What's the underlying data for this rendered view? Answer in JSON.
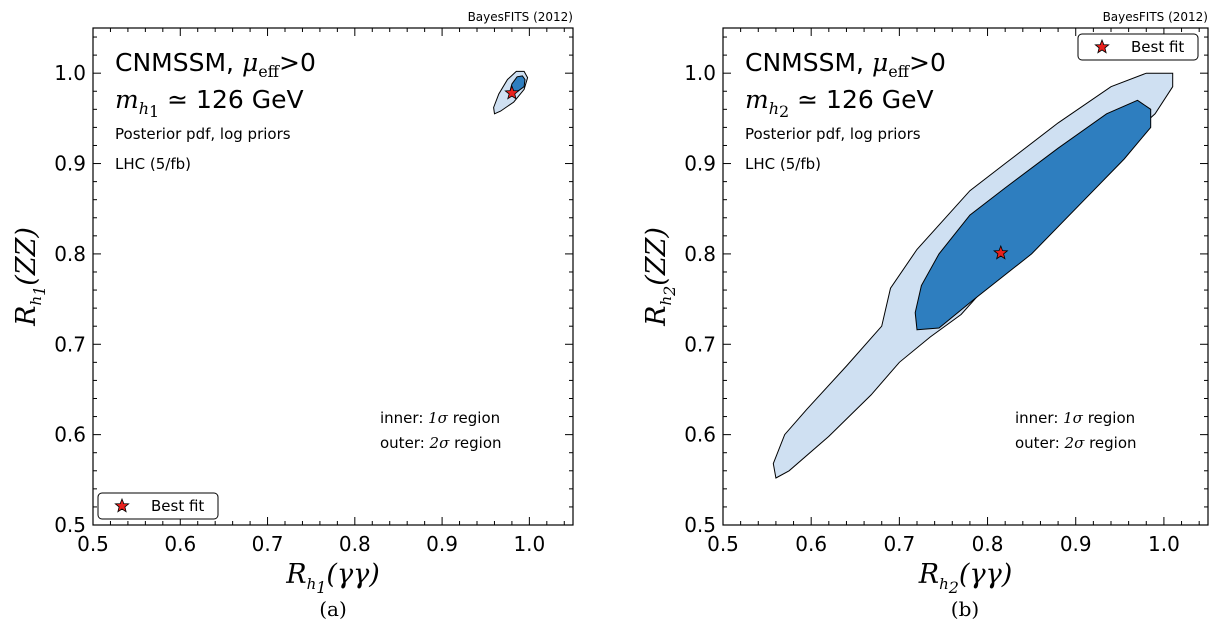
{
  "chart_data": [
    {
      "type": "contour",
      "panel_label": "(a)",
      "credit": "BayesFITS (2012)",
      "title_model": "CNMSSM,",
      "title_mu_symbol": "μ",
      "title_mu_sub": "eff",
      "title_mu_cond": ">0",
      "mass_symbol": "m",
      "mass_sub": "h",
      "mass_subsub": "1",
      "mass_value": "≃ 126 GeV",
      "line_pdf": "Posterior pdf, log priors",
      "line_data": "LHC (5/fb)",
      "region_inner_prefix": "inner: ",
      "region_inner_sym": "1σ",
      "region_inner_suffix": " region",
      "region_outer_prefix": "outer: ",
      "region_outer_sym": "2σ",
      "region_outer_suffix": " region",
      "legend_label": "Best fit",
      "legend_position": "lower-left",
      "xlabel_sym": "R",
      "xlabel_sub": "h",
      "xlabel_subsub": "1",
      "xlabel_arg": "(γγ)",
      "ylabel_sym": "R",
      "ylabel_sub": "h",
      "ylabel_subsub": "1",
      "ylabel_arg": "(ZZ)",
      "xlim": [
        0.5,
        1.05
      ],
      "ylim": [
        0.5,
        1.05
      ],
      "xticks": [
        "0.5",
        "0.6",
        "0.7",
        "0.8",
        "0.9",
        "1.0"
      ],
      "yticks": [
        "0.5",
        "0.6",
        "0.7",
        "0.8",
        "0.9",
        "1.0"
      ],
      "best_fit": [
        0.98,
        0.978
      ],
      "contour_outer": [
        [
          0.96,
          0.955
        ],
        [
          0.967,
          0.958
        ],
        [
          0.982,
          0.968
        ],
        [
          0.994,
          0.982
        ],
        [
          0.998,
          0.995
        ],
        [
          0.994,
          1.002
        ],
        [
          0.985,
          1.002
        ],
        [
          0.975,
          0.993
        ],
        [
          0.965,
          0.977
        ],
        [
          0.959,
          0.962
        ]
      ],
      "contour_inner": [
        [
          0.98,
          0.978
        ],
        [
          0.988,
          0.981
        ],
        [
          0.994,
          0.985
        ],
        [
          0.995,
          0.993
        ],
        [
          0.992,
          0.997
        ],
        [
          0.986,
          0.996
        ],
        [
          0.98,
          0.988
        ],
        [
          0.978,
          0.981
        ]
      ],
      "colors": {
        "outer_fill": "#cfe0f2",
        "inner_fill": "#2e7ebf",
        "star": "#e8211d"
      }
    },
    {
      "type": "contour",
      "panel_label": "(b)",
      "credit": "BayesFITS (2012)",
      "title_model": "CNMSSM,",
      "title_mu_symbol": "μ",
      "title_mu_sub": "eff",
      "title_mu_cond": ">0",
      "mass_symbol": "m",
      "mass_sub": "h",
      "mass_subsub": "2",
      "mass_value": "≃ 126 GeV",
      "line_pdf": "Posterior pdf, log priors",
      "line_data": "LHC (5/fb)",
      "region_inner_prefix": "inner: ",
      "region_inner_sym": "1σ",
      "region_inner_suffix": " region",
      "region_outer_prefix": "outer: ",
      "region_outer_sym": "2σ",
      "region_outer_suffix": " region",
      "legend_label": "Best fit",
      "legend_position": "upper-right",
      "xlabel_sym": "R",
      "xlabel_sub": "h",
      "xlabel_subsub": "2",
      "xlabel_arg": "(γγ)",
      "ylabel_sym": "R",
      "ylabel_sub": "h",
      "ylabel_subsub": "2",
      "ylabel_arg": "(ZZ)",
      "xlim": [
        0.5,
        1.05
      ],
      "ylim": [
        0.5,
        1.05
      ],
      "xticks": [
        "0.5",
        "0.6",
        "0.7",
        "0.8",
        "0.9",
        "1.0"
      ],
      "yticks": [
        "0.5",
        "0.6",
        "0.7",
        "0.8",
        "0.9",
        "1.0"
      ],
      "best_fit": [
        0.815,
        0.801
      ],
      "contour_outer": [
        [
          0.56,
          0.552
        ],
        [
          0.575,
          0.56
        ],
        [
          0.62,
          0.598
        ],
        [
          0.668,
          0.644
        ],
        [
          0.7,
          0.68
        ],
        [
          0.735,
          0.708
        ],
        [
          0.77,
          0.733
        ],
        [
          0.85,
          0.82
        ],
        [
          0.9,
          0.865
        ],
        [
          0.95,
          0.92
        ],
        [
          0.99,
          0.955
        ],
        [
          1.01,
          0.985
        ],
        [
          1.01,
          1.0
        ],
        [
          0.98,
          1.0
        ],
        [
          0.94,
          0.985
        ],
        [
          0.88,
          0.945
        ],
        [
          0.82,
          0.9
        ],
        [
          0.78,
          0.87
        ],
        [
          0.72,
          0.805
        ],
        [
          0.69,
          0.762
        ],
        [
          0.68,
          0.72
        ],
        [
          0.64,
          0.676
        ],
        [
          0.595,
          0.628
        ],
        [
          0.57,
          0.6
        ],
        [
          0.557,
          0.568
        ]
      ],
      "contour_inner": [
        [
          0.72,
          0.716
        ],
        [
          0.745,
          0.718
        ],
        [
          0.785,
          0.75
        ],
        [
          0.85,
          0.8
        ],
        [
          0.91,
          0.86
        ],
        [
          0.955,
          0.905
        ],
        [
          0.985,
          0.94
        ],
        [
          0.985,
          0.96
        ],
        [
          0.97,
          0.97
        ],
        [
          0.935,
          0.955
        ],
        [
          0.88,
          0.917
        ],
        [
          0.82,
          0.873
        ],
        [
          0.78,
          0.843
        ],
        [
          0.745,
          0.8
        ],
        [
          0.725,
          0.765
        ],
        [
          0.718,
          0.735
        ]
      ],
      "colors": {
        "outer_fill": "#cfe0f2",
        "inner_fill": "#2e7ebf",
        "star": "#e8211d"
      }
    }
  ]
}
